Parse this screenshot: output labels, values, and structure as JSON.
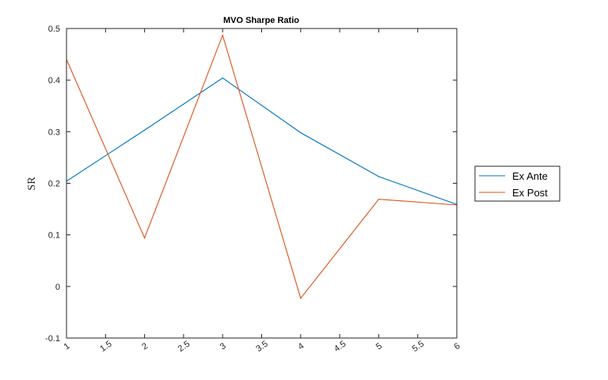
{
  "chart_data": {
    "type": "line",
    "title": "MVO Sharpe Ratio",
    "xlabel": "",
    "ylabel": "SR",
    "x": [
      1,
      2,
      3,
      4,
      5,
      6
    ],
    "xlim": [
      1,
      6
    ],
    "ylim": [
      -0.1,
      0.5
    ],
    "xticks": [
      1,
      1.5,
      2,
      2.5,
      3,
      3.5,
      4,
      4.5,
      5,
      5.5,
      6
    ],
    "xtick_labels": [
      "1",
      "1.5",
      "2",
      "2.5",
      "3",
      "3.5",
      "4",
      "4.5",
      "5",
      "5.5",
      "6"
    ],
    "yticks": [
      -0.1,
      0,
      0.1,
      0.2,
      0.3,
      0.4,
      0.5
    ],
    "ytick_labels": [
      "-0.1",
      "0",
      "0.1",
      "0.2",
      "0.3",
      "0.4",
      "0.5"
    ],
    "grid": false,
    "legend_position": "right, outside",
    "series": [
      {
        "name": "Ex Ante",
        "color": "#0072BD",
        "values": [
          0.204,
          0.303,
          0.404,
          0.298,
          0.213,
          0.159
        ]
      },
      {
        "name": "Ex Post",
        "color": "#D95319",
        "values": [
          0.44,
          0.094,
          0.487,
          -0.023,
          0.169,
          0.158
        ]
      }
    ]
  }
}
